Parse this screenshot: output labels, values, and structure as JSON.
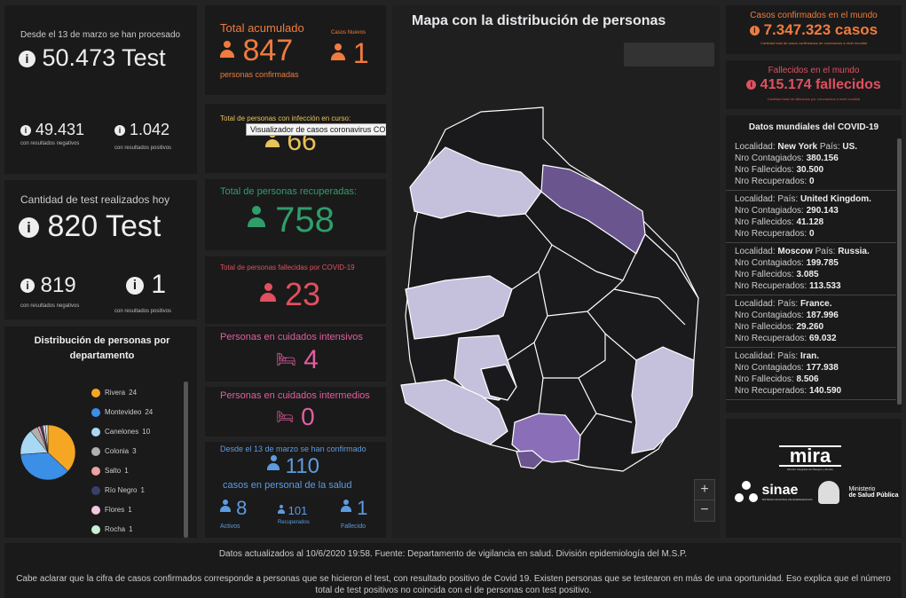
{
  "tests": {
    "since_label": "Desde el 13 de marzo se han procesado",
    "total": "50.473 Test",
    "negative": "49.431",
    "negative_label": "con resultados negativos",
    "positive": "1.042",
    "positive_label": "con resultados positivos"
  },
  "tests_today": {
    "label": "Cantidad de test realizados hoy",
    "total": "820 Test",
    "negative": "819",
    "negative_label": "con resultados negativos",
    "positive": "1",
    "positive_label": "con resultados positivos"
  },
  "distribution": {
    "title": "Distribución de personas por departamento",
    "items": [
      {
        "label": "Rivera",
        "value": 24,
        "color": "#f5a623"
      },
      {
        "label": "Montevideo",
        "value": 24,
        "color": "#3b8fe6"
      },
      {
        "label": "Canelones",
        "value": 10,
        "color": "#a9d8f5"
      },
      {
        "label": "Colonia",
        "value": 3,
        "color": "#b0b0b0"
      },
      {
        "label": "Salto",
        "value": 1,
        "color": "#f0a0a0"
      },
      {
        "label": "Río Negro",
        "value": 1,
        "color": "#3a3f6a"
      },
      {
        "label": "Flores",
        "value": 1,
        "color": "#f7c6e0"
      },
      {
        "label": "Rocha",
        "value": 1,
        "color": "#c8f0d8"
      }
    ]
  },
  "accumulated": {
    "title": "Total acumulado",
    "value": "847",
    "sub": "personas confirmadas",
    "new_title": "Casos Nuevos",
    "new_value": "1"
  },
  "active": {
    "title": "Total de personas con infección en curso:",
    "value": "66",
    "tooltip": "Visualizador de casos coronavirus COVID-19 en Uruguay"
  },
  "recovered": {
    "title": "Total de personas recuperadas:",
    "value": "758"
  },
  "deceased": {
    "title": "Total de personas fallecidas por COVID-19",
    "value": "23"
  },
  "icu": {
    "title": "Personas en cuidados intensivos",
    "value": "4"
  },
  "intermediate": {
    "title": "Personas en cuidados intermedios",
    "value": "0"
  },
  "health_staff": {
    "since_label": "Desde el 13 de marzo se han confirmado",
    "value": "110",
    "sub": "casos en personal de la salud",
    "active_value": "8",
    "active_label": "Activos",
    "recovered_value": "101",
    "recovered_label": "Recuperados",
    "deceased_value": "1",
    "deceased_label": "Fallecido"
  },
  "map": {
    "title": "Mapa con la distribución de personas",
    "zoom_in": "+",
    "zoom_out": "−"
  },
  "world": {
    "confirmed_title": "Casos confirmados en el mundo",
    "confirmed_value": "7.347.323 casos",
    "confirmed_sub": "Cantidad total de casos confirmados de coronavirus a nivel mundial",
    "deaths_title": "Fallecidos en el mundo",
    "deaths_value": "415.174 fallecidos",
    "deaths_sub": "Cantidad total de fallecidos por coronavirus a nivel mundial",
    "list_title": "Datos mundiales del COVID-19",
    "lbl_localidad": "Localidad:",
    "lbl_pais": "País:",
    "lbl_contagiados": "Nro Contagiados:",
    "lbl_fallecidos": "Nro Fallecidos:",
    "lbl_recuperados": "Nro Recuperados:",
    "items": [
      {
        "localidad": "New York",
        "pais": "US.",
        "contagiados": "380.156",
        "fallecidos": "30.500",
        "recuperados": "0"
      },
      {
        "localidad": "",
        "pais": "United Kingdom.",
        "contagiados": "290.143",
        "fallecidos": "41.128",
        "recuperados": "0"
      },
      {
        "localidad": "Moscow",
        "pais": "Russia.",
        "contagiados": "199.785",
        "fallecidos": "3.085",
        "recuperados": "113.533"
      },
      {
        "localidad": "",
        "pais": "France.",
        "contagiados": "187.996",
        "fallecidos": "29.260",
        "recuperados": "69.032"
      },
      {
        "localidad": "",
        "pais": "Iran.",
        "contagiados": "177.938",
        "fallecidos": "8.506",
        "recuperados": "140.590"
      }
    ]
  },
  "logos": {
    "mira": "mira",
    "mira_sub": "Monitor Integrado de Riesgos y Alertas",
    "sinae": "sinae",
    "sinae_sub": "SISTEMA NACIONAL DE EMERGENCIAS",
    "msp_line1": "Ministerio",
    "msp_line2": "de Salud Pública"
  },
  "footer": {
    "line1": "Datos actualizados al 10/6/2020 19:58. Fuente: Departamento de vigilancia en salud. División epidemiología del M.S.P.",
    "line2": "Cabe aclarar que la cifra de casos confirmados corresponde a personas que se hicieron el test, con resultado positivo de Covid 19. Existen personas que se testearon en más de una oportunidad. Eso explica que el número total de test positivos no coincida con el de personas con test positivo."
  }
}
